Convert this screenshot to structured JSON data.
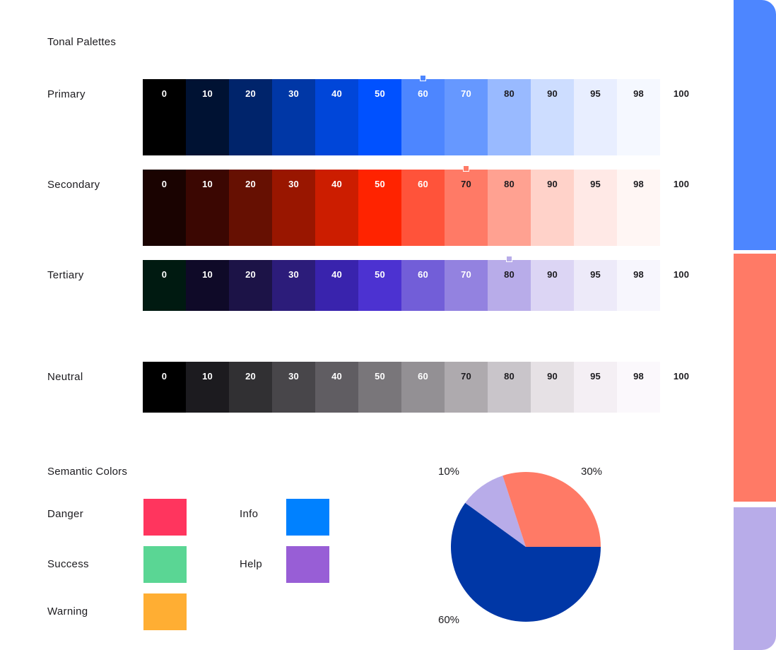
{
  "title": "Tonal Palettes",
  "tones": [
    "0",
    "10",
    "20",
    "30",
    "40",
    "50",
    "60",
    "70",
    "80",
    "90",
    "95",
    "98",
    "100"
  ],
  "palettes": [
    {
      "name": "Primary",
      "marker_tone": "60",
      "colors": [
        "#000000",
        "#001233",
        "#00246b",
        "#0037a6",
        "#0046d9",
        "#0051ff",
        "#4d86ff",
        "#6698ff",
        "#99baff",
        "#cdddff",
        "#e8eeff",
        "#f5f8ff",
        "#ffffff"
      ]
    },
    {
      "name": "Secondary",
      "marker_tone": "70",
      "colors": [
        "#1a0301",
        "#3b0702",
        "#661002",
        "#991600",
        "#cc1d00",
        "#ff2300",
        "#ff533a",
        "#ff7a66",
        "#ffa191",
        "#ffd2c9",
        "#ffe9e6",
        "#fff6f4",
        "#ffffff"
      ]
    },
    {
      "name": "Tertiary",
      "marker_tone": "80",
      "colors": [
        "#001a11",
        "#0f0a28",
        "#1c1347",
        "#2c1c7a",
        "#3923ad",
        "#4c32d1",
        "#725ed8",
        "#9382e0",
        "#b8ace9",
        "#dcd5f4",
        "#edeaf9",
        "#f7f6fd",
        "#ffffff"
      ]
    },
    {
      "name": "Neutral",
      "marker_tone": "",
      "colors": [
        "#000000",
        "#1c1b1f",
        "#313033",
        "#48464a",
        "#605d62",
        "#79767a",
        "#939094",
        "#aeaaae",
        "#c9c5ca",
        "#e6e1e5",
        "#f4eff4",
        "#fbf8fc",
        "#ffffff"
      ]
    }
  ],
  "semantic": {
    "title": "Semantic Colors",
    "items": [
      {
        "label": "Danger",
        "color": "#ff355e"
      },
      {
        "label": "Success",
        "color": "#5ad694"
      },
      {
        "label": "Warning",
        "color": "#ffae33"
      },
      {
        "label": "Info",
        "color": "#0081ff"
      },
      {
        "label": "Help",
        "color": "#985ed6"
      }
    ]
  },
  "chart_data": {
    "type": "pie",
    "slices": [
      {
        "label": "60%",
        "value": 60,
        "color": "#0037a6"
      },
      {
        "label": "10%",
        "value": 10,
        "color": "#b8ace9"
      },
      {
        "label": "30%",
        "value": 30,
        "color": "#ff7a66"
      }
    ]
  },
  "sidebar": {
    "colors": [
      "#4d86ff",
      "#ff7a66",
      "#b8ace9"
    ]
  }
}
